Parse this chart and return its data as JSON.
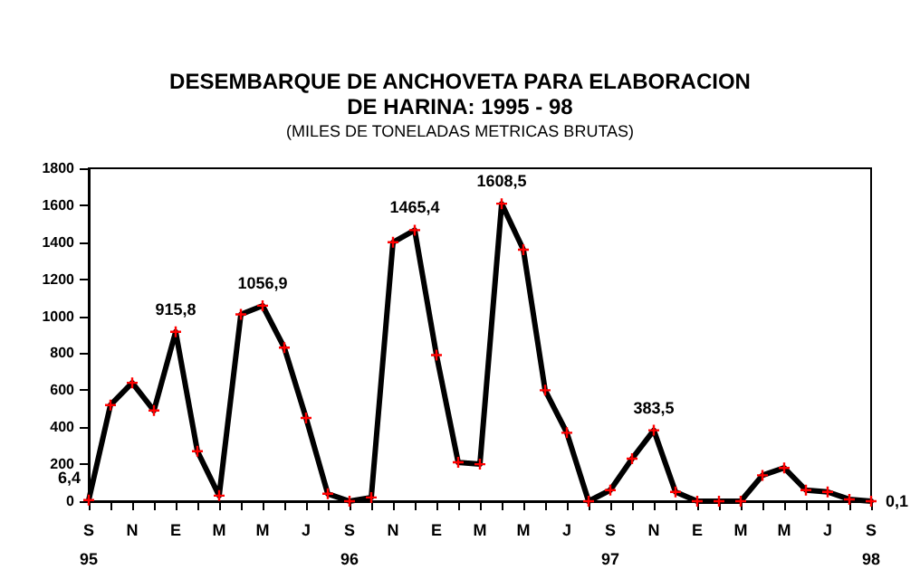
{
  "chart_data": {
    "type": "line",
    "title": "DESEMBARQUE DE ANCHOVETA PARA ELABORACION\nDE HARINA: 1995 - 98",
    "subtitle": "(MILES DE TONELADAS METRICAS BRUTAS)",
    "categories": [
      "S\n95",
      null,
      "N",
      null,
      "E",
      null,
      "M",
      null,
      "M",
      null,
      "J",
      null,
      "S\n96",
      null,
      "N",
      null,
      "E",
      null,
      "M",
      null,
      "M",
      null,
      "J",
      null,
      "S\n97",
      null,
      "N",
      null,
      "E",
      null,
      "M",
      null,
      "M",
      null,
      "J",
      null,
      "S\n98"
    ],
    "series": [
      {
        "color": "#000000",
        "colors": [
          "#ff0000",
          "#ff0000",
          "#ff0000",
          "#ff0000",
          "#ff0000",
          "#ff0000",
          "#ff0000",
          "#ff0000",
          "#ff0000",
          "#ff0000",
          "#ff0000",
          "#ff0000",
          "#ff0000",
          "#ff0000",
          "#ff0000",
          "#ff0000",
          "#ff0000",
          "#ff0000",
          "#ff0000",
          "#ff0000",
          "#ff0000",
          "#ff0000",
          "#ff0000",
          "#ff0000",
          "#ff0000",
          "#ff0000",
          "#ff0000",
          "#ff0000",
          "#ff0000",
          "#ff0000",
          "#ff0000",
          "#ff0000",
          "#ff0000",
          "#ff0000",
          "#ff0000",
          "#ff0000",
          "#ff0000"
        ],
        "values": [
          6.4,
          520,
          640,
          490,
          915.8,
          270,
          30,
          1010,
          1056.9,
          830,
          450,
          40,
          0,
          20,
          1400,
          1465.4,
          790,
          210,
          200,
          1608.5,
          1360,
          600,
          370,
          0,
          60,
          230,
          383.5,
          50,
          0,
          0,
          0,
          140,
          180,
          60,
          50,
          10,
          0.1
        ],
        "value_labels": [
          "6,4",
          null,
          null,
          null,
          "915,8",
          null,
          null,
          null,
          "1056,9",
          null,
          null,
          null,
          null,
          null,
          null,
          "1465,4",
          null,
          null,
          null,
          "1608,5",
          null,
          null,
          null,
          null,
          null,
          null,
          "383,5",
          null,
          null,
          null,
          null,
          null,
          null,
          null,
          null,
          null,
          "0,1"
        ]
      }
    ],
    "ylim": [
      0,
      1800
    ],
    "yticks": [
      0,
      200,
      400,
      600,
      800,
      1000,
      1200,
      1400,
      1600,
      1800
    ],
    "grid": false,
    "marker": "cross",
    "line_style": "solid"
  }
}
